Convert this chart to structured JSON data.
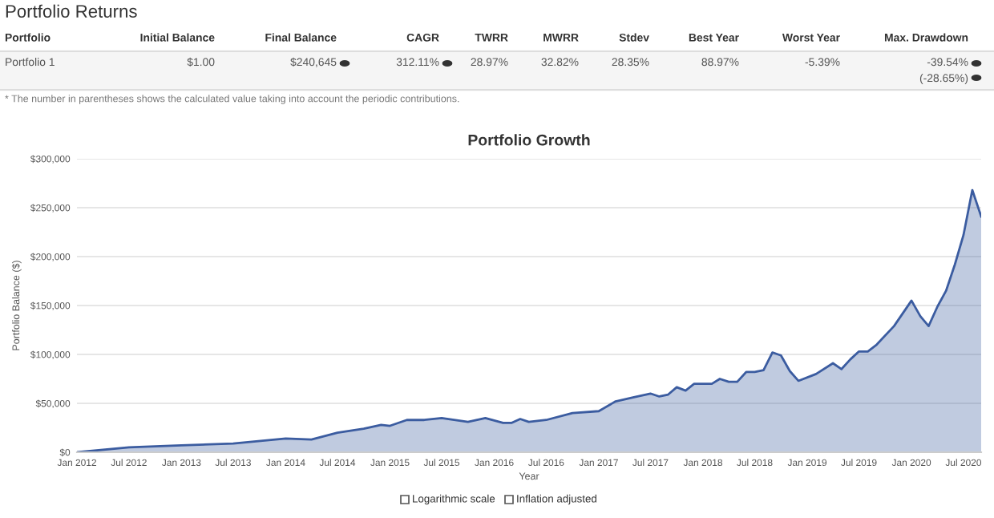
{
  "chart_data": [
    {
      "type": "other",
      "title": "Portfolio Returns",
      "annotations": [
        "Portfolio",
        "Initial Balance",
        "Final Balance",
        "CAGR",
        "TWRR",
        "MWRR",
        "Stdev",
        "Best Year",
        "Worst Year",
        "Max. Drawdown",
        "Portfolio 1",
        "$1.00",
        "$240,645",
        "312.11%",
        "28.97%",
        "32.82%",
        "28.35%",
        "88.97%",
        "-5.39%",
        "-39.54%\n(-28.65%)",
        "* The number in parentheses shows the calculated value taking into account the periodic contributions."
      ]
    },
    {
      "type": "area",
      "title": "Portfolio Growth",
      "xlabel": "Year",
      "ylabel": "Portfolio Balance ($)",
      "grid": "y",
      "annotations": [
        "Logarithmic scale",
        "Inflation adjusted"
      ],
      "xlim": [
        "2012-01",
        "2020-09"
      ],
      "ylim": [
        0,
        300000
      ],
      "xticks": [
        {
          "value": "2012-01",
          "label": "Jan 2012"
        },
        {
          "value": "2012-07",
          "label": "Jul 2012"
        },
        {
          "value": "2013-01",
          "label": "Jan 2013"
        },
        {
          "value": "2013-07",
          "label": "Jul 2013"
        },
        {
          "value": "2014-01",
          "label": "Jan 2014"
        },
        {
          "value": "2014-07",
          "label": "Jul 2014"
        },
        {
          "value": "2015-01",
          "label": "Jan 2015"
        },
        {
          "value": "2015-07",
          "label": "Jul 2015"
        },
        {
          "value": "2016-01",
          "label": "Jan 2016"
        },
        {
          "value": "2016-07",
          "label": "Jul 2016"
        },
        {
          "value": "2017-01",
          "label": "Jan 2017"
        },
        {
          "value": "2017-07",
          "label": "Jul 2017"
        },
        {
          "value": "2018-01",
          "label": "Jan 2018"
        },
        {
          "value": "2018-07",
          "label": "Jul 2018"
        },
        {
          "value": "2019-01",
          "label": "Jan 2019"
        },
        {
          "value": "2019-07",
          "label": "Jul 2019"
        },
        {
          "value": "2020-01",
          "label": "Jan 2020"
        },
        {
          "value": "2020-07",
          "label": "Jul 2020"
        }
      ],
      "yticks": [
        {
          "value": 0,
          "label": "$0"
        },
        {
          "value": 50000,
          "label": "$50,000"
        },
        {
          "value": 100000,
          "label": "$100,000"
        },
        {
          "value": 150000,
          "label": "$150,000"
        },
        {
          "value": 200000,
          "label": "$200,000"
        },
        {
          "value": 250000,
          "label": "$250,000"
        },
        {
          "value": 300000,
          "label": "$300,000"
        }
      ],
      "series": [
        {
          "color": "#3b5ca0",
          "x": [
            "2012-01",
            "2012-07",
            "2013-01",
            "2013-07",
            "2014-01",
            "2014-04",
            "2014-07",
            "2014-10",
            "2014-12",
            "2015-01",
            "2015-03",
            "2015-05",
            "2015-07",
            "2015-10",
            "2015-12",
            "2016-02",
            "2016-03",
            "2016-04",
            "2016-05",
            "2016-07",
            "2016-10",
            "2017-01",
            "2017-03",
            "2017-05",
            "2017-07",
            "2017-08",
            "2017-09",
            "2017-10",
            "2017-11",
            "2017-12",
            "2018-02",
            "2018-03",
            "2018-04",
            "2018-05",
            "2018-06",
            "2018-07",
            "2018-08",
            "2018-09",
            "2018-10",
            "2018-11",
            "2018-12",
            "2019-02",
            "2019-04",
            "2019-05",
            "2019-06",
            "2019-07",
            "2019-08",
            "2019-09",
            "2019-11",
            "2020-01",
            "2020-02",
            "2020-03",
            "2020-04",
            "2020-05",
            "2020-06",
            "2020-07",
            "2020-08",
            "2020-09"
          ],
          "values": [
            0,
            5000,
            7000,
            9000,
            14000,
            13000,
            20000,
            24000,
            28000,
            27000,
            33000,
            33000,
            35000,
            31000,
            35000,
            30000,
            30000,
            34000,
            31000,
            33000,
            40000,
            42000,
            52000,
            56000,
            60000,
            57000,
            59000,
            66500,
            63000,
            70000,
            70000,
            75000,
            72000,
            72000,
            82000,
            82000,
            84000,
            102000,
            99000,
            83000,
            73000,
            80000,
            91000,
            85000,
            95000,
            103000,
            103000,
            110000,
            129000,
            155000,
            139000,
            129000,
            149000,
            165000,
            192000,
            222000,
            268000,
            241000
          ]
        }
      ]
    }
  ]
}
